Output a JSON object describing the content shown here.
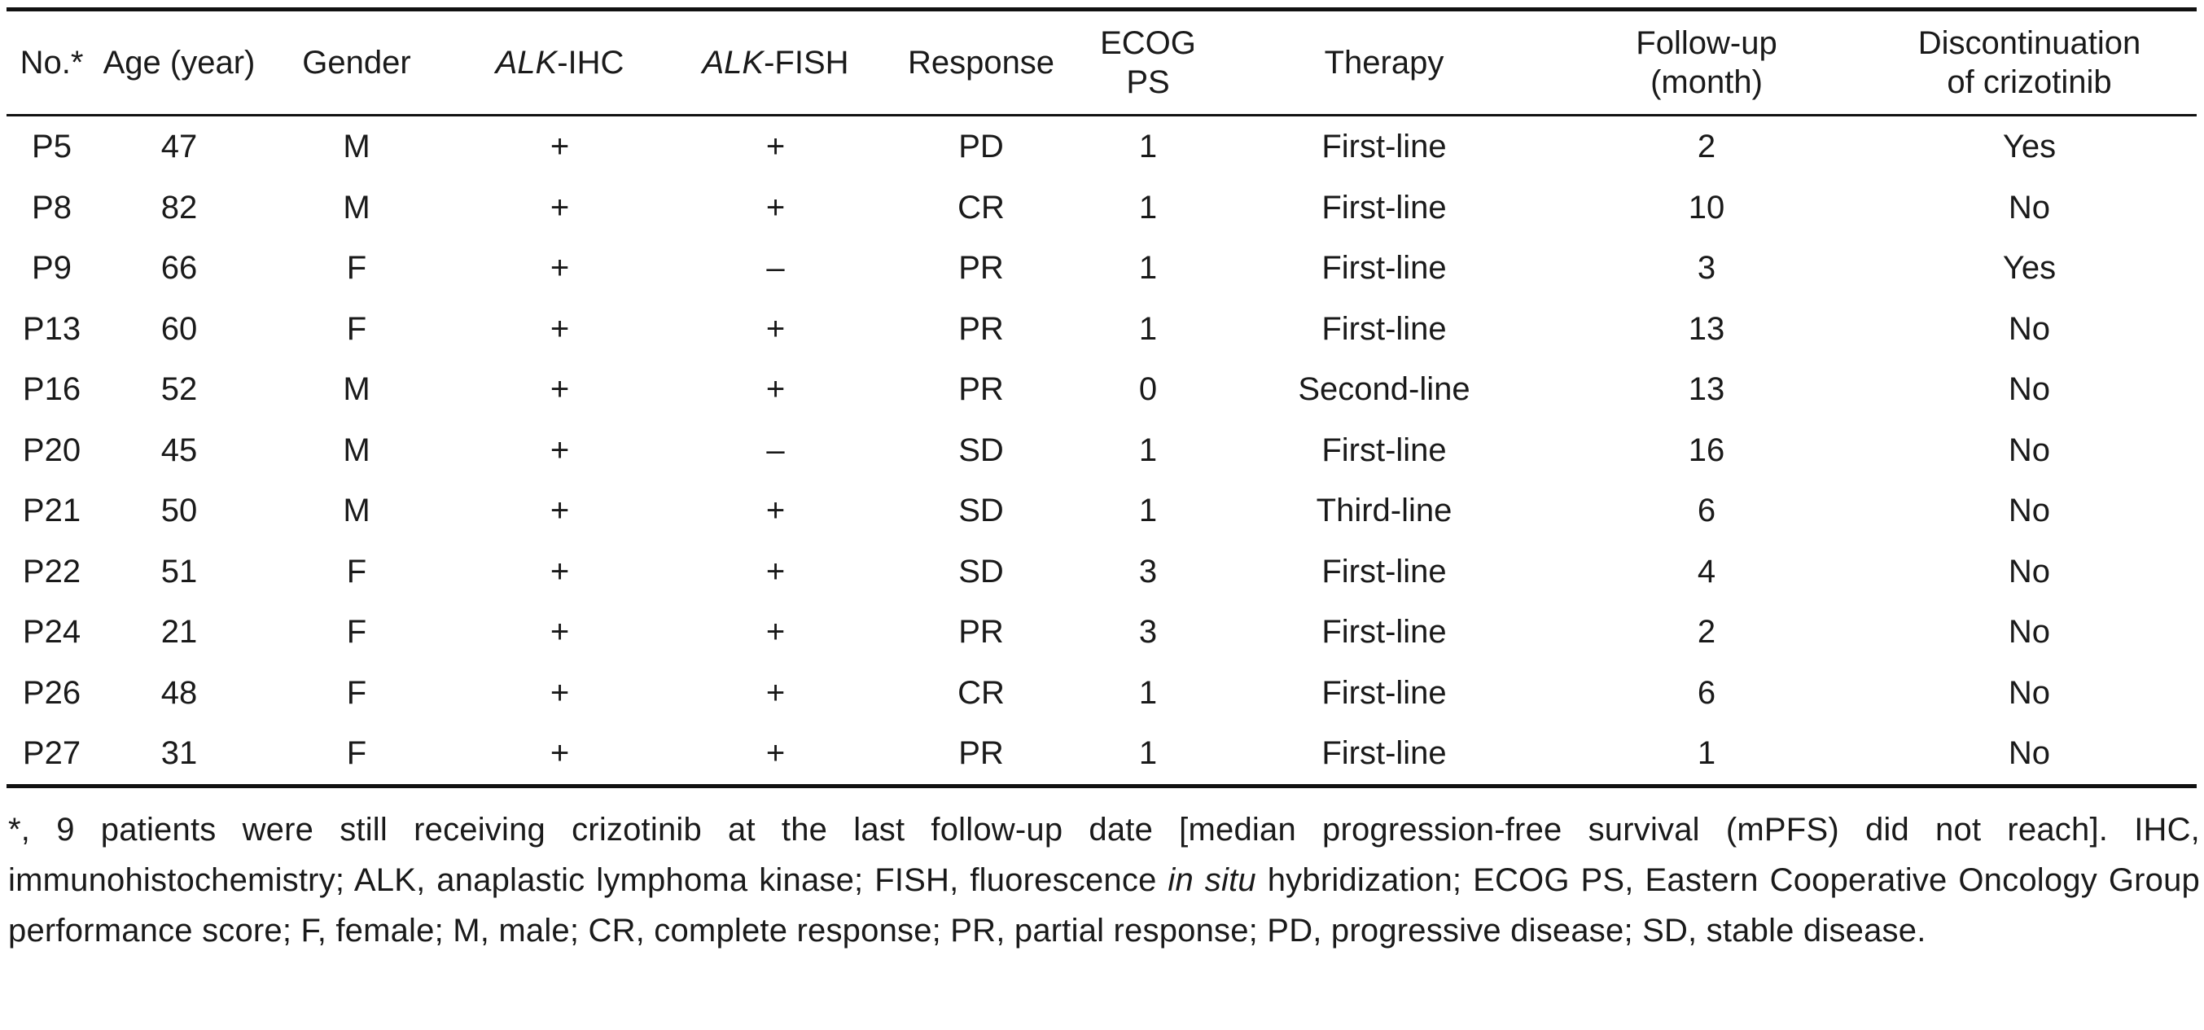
{
  "table": {
    "headers": {
      "no": "No.*",
      "age": "Age (year)",
      "gender": "Gender",
      "alk_ihc_italic": "ALK",
      "alk_ihc_rest": "-IHC",
      "alk_fish_italic": "ALK",
      "alk_fish_rest": "-FISH",
      "response": "Response",
      "ecog": "ECOG PS",
      "therapy": "Therapy",
      "followup_line1": "Follow-up",
      "followup_line2": "(month)",
      "discontinuation_line1": "Discontinuation",
      "discontinuation_line2": "of crizotinib"
    },
    "rows": [
      {
        "no": "P5",
        "age": "47",
        "gender": "M",
        "ihc": "+",
        "fish": "+",
        "response": "PD",
        "ecog": "1",
        "therapy": "First-line",
        "followup": "2",
        "discontinuation": "Yes"
      },
      {
        "no": "P8",
        "age": "82",
        "gender": "M",
        "ihc": "+",
        "fish": "+",
        "response": "CR",
        "ecog": "1",
        "therapy": "First-line",
        "followup": "10",
        "discontinuation": "No"
      },
      {
        "no": "P9",
        "age": "66",
        "gender": "F",
        "ihc": "+",
        "fish": "–",
        "response": "PR",
        "ecog": "1",
        "therapy": "First-line",
        "followup": "3",
        "discontinuation": "Yes"
      },
      {
        "no": "P13",
        "age": "60",
        "gender": "F",
        "ihc": "+",
        "fish": "+",
        "response": "PR",
        "ecog": "1",
        "therapy": "First-line",
        "followup": "13",
        "discontinuation": "No"
      },
      {
        "no": "P16",
        "age": "52",
        "gender": "M",
        "ihc": "+",
        "fish": "+",
        "response": "PR",
        "ecog": "0",
        "therapy": "Second-line",
        "followup": "13",
        "discontinuation": "No"
      },
      {
        "no": "P20",
        "age": "45",
        "gender": "M",
        "ihc": "+",
        "fish": "–",
        "response": "SD",
        "ecog": "1",
        "therapy": "First-line",
        "followup": "16",
        "discontinuation": "No"
      },
      {
        "no": "P21",
        "age": "50",
        "gender": "M",
        "ihc": "+",
        "fish": "+",
        "response": "SD",
        "ecog": "1",
        "therapy": "Third-line",
        "followup": "6",
        "discontinuation": "No"
      },
      {
        "no": "P22",
        "age": "51",
        "gender": "F",
        "ihc": "+",
        "fish": "+",
        "response": "SD",
        "ecog": "3",
        "therapy": "First-line",
        "followup": "4",
        "discontinuation": "No"
      },
      {
        "no": "P24",
        "age": "21",
        "gender": "F",
        "ihc": "+",
        "fish": "+",
        "response": "PR",
        "ecog": "3",
        "therapy": "First-line",
        "followup": "2",
        "discontinuation": "No"
      },
      {
        "no": "P26",
        "age": "48",
        "gender": "F",
        "ihc": "+",
        "fish": "+",
        "response": "CR",
        "ecog": "1",
        "therapy": "First-line",
        "followup": "6",
        "discontinuation": "No"
      },
      {
        "no": "P27",
        "age": "31",
        "gender": "F",
        "ihc": "+",
        "fish": "+",
        "response": "PR",
        "ecog": "1",
        "therapy": "First-line",
        "followup": "1",
        "discontinuation": "No"
      }
    ]
  },
  "footnote": {
    "part1": "*, 9 patients were still receiving crizotinib at the last follow-up date [median progression-free survival (mPFS) did not reach]. IHC, immunohistochemistry; ALK, anaplastic lymphoma kinase; FISH, fluorescence ",
    "italic": "in situ",
    "part2": " hybridization; ECOG PS, Eastern Cooperative Oncology Group performance score; F, female; M, male; CR, complete response; PR, partial response; PD, progressive disease; SD, stable disease."
  }
}
